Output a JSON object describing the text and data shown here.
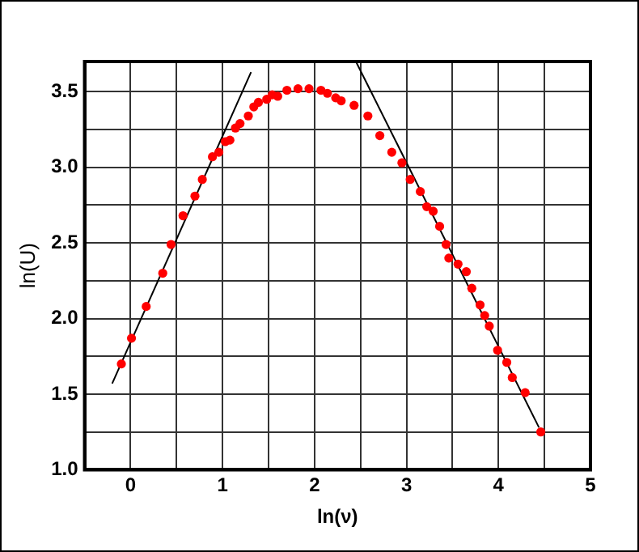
{
  "chart_data": {
    "type": "scatter",
    "xlabel": "ln(ν)",
    "ylabel": "ln(U)",
    "xlim": [
      -0.5,
      5
    ],
    "ylim": [
      1.0,
      3.7
    ],
    "xticks": [
      {
        "value": -0.5,
        "label": null
      },
      0,
      {
        "value": 0.5,
        "label": null
      },
      1,
      {
        "value": 1.5,
        "label": null
      },
      2,
      {
        "value": 2.5,
        "label": null
      },
      3,
      {
        "value": 3.5,
        "label": null
      },
      4,
      {
        "value": 4.5,
        "label": null
      },
      5
    ],
    "yticks": [
      {
        "value": 1.0,
        "label": "1.0"
      },
      {
        "value": 1.5,
        "label": "1.5"
      },
      {
        "value": 2.0,
        "label": "2.0"
      },
      {
        "value": 2.5,
        "label": "2.5"
      },
      {
        "value": 3.0,
        "label": "3.0"
      },
      {
        "value": 3.5,
        "label": "3.5"
      }
    ],
    "grid": true,
    "legend": false,
    "marker": "circle",
    "series": [
      {
        "type": "scatter",
        "color": "#ff0000",
        "x": [
          -0.1,
          0.01,
          0.17,
          0.35,
          0.44,
          0.57,
          0.7,
          0.78,
          0.89,
          0.96,
          1.03,
          1.08,
          1.14,
          1.19,
          1.28,
          1.34,
          1.39,
          1.48,
          1.54,
          1.6,
          1.7,
          1.82,
          1.94,
          2.07,
          2.14,
          2.23,
          2.29,
          2.43,
          2.58,
          2.71,
          2.84,
          2.95,
          3.04,
          3.15,
          3.22,
          3.29,
          3.36,
          3.43,
          3.46,
          3.56,
          3.65,
          3.71,
          3.8,
          3.85,
          3.9,
          3.99,
          4.09,
          4.15,
          4.29,
          4.46
        ],
        "values": [
          1.7,
          1.87,
          2.08,
          2.3,
          2.49,
          2.68,
          2.81,
          2.92,
          3.07,
          3.1,
          3.17,
          3.18,
          3.26,
          3.29,
          3.34,
          3.4,
          3.43,
          3.45,
          3.48,
          3.47,
          3.51,
          3.52,
          3.52,
          3.51,
          3.49,
          3.46,
          3.44,
          3.41,
          3.34,
          3.21,
          3.1,
          3.03,
          2.92,
          2.84,
          2.74,
          2.71,
          2.61,
          2.49,
          2.4,
          2.36,
          2.31,
          2.2,
          2.09,
          2.02,
          1.95,
          1.79,
          1.71,
          1.61,
          1.51,
          1.25
        ]
      },
      {
        "type": "line",
        "color": "#000000",
        "x": [
          -0.2,
          1.31
        ],
        "values": [
          1.57,
          3.63
        ],
        "marker": "none"
      },
      {
        "type": "line",
        "color": "#000000",
        "x": [
          2.45,
          4.44
        ],
        "values": [
          3.7,
          1.28
        ],
        "marker": "none"
      }
    ]
  }
}
